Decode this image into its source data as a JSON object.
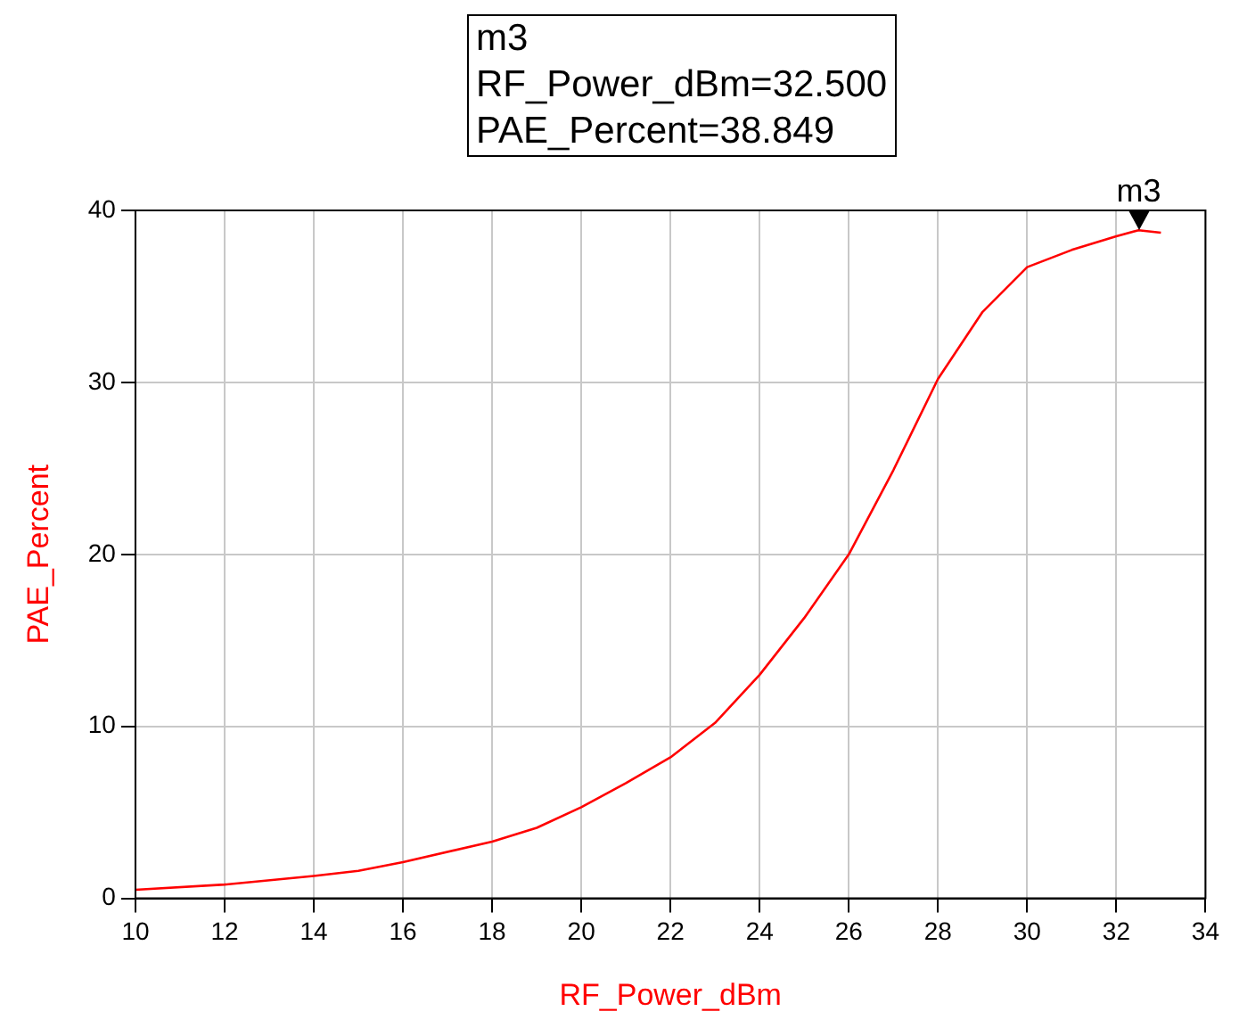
{
  "chart_data": {
    "type": "line",
    "xlabel": "RF_Power_dBm",
    "ylabel": "PAE_Percent",
    "x": [
      10,
      12,
      14,
      15,
      16,
      18,
      19,
      20,
      21,
      22,
      23,
      24,
      25,
      26,
      27,
      28,
      29,
      30,
      31,
      32,
      32.5,
      33
    ],
    "series": [
      {
        "color": "#ff0000",
        "values": [
          0.5,
          0.8,
          1.3,
          1.6,
          2.1,
          3.3,
          4.1,
          5.3,
          6.7,
          8.2,
          10.2,
          13.0,
          16.3,
          20.0,
          24.9,
          30.2,
          34.1,
          36.7,
          37.7,
          38.5,
          38.849,
          38.7
        ]
      }
    ],
    "xlim": [
      10,
      34
    ],
    "xticks": [
      10,
      12,
      14,
      16,
      18,
      20,
      22,
      24,
      26,
      28,
      30,
      32,
      34
    ],
    "ylim": [
      0,
      40
    ],
    "yticks": [
      0,
      10,
      20,
      30,
      40
    ],
    "grid": true,
    "legend": false,
    "marker": "none",
    "line_style": "solid",
    "annotations": [
      {
        "text": "m3",
        "x": 32.5,
        "y": 38.849
      },
      "m3",
      "RF_Power_dBm=32.500",
      "PAE_Percent=38.849"
    ]
  }
}
